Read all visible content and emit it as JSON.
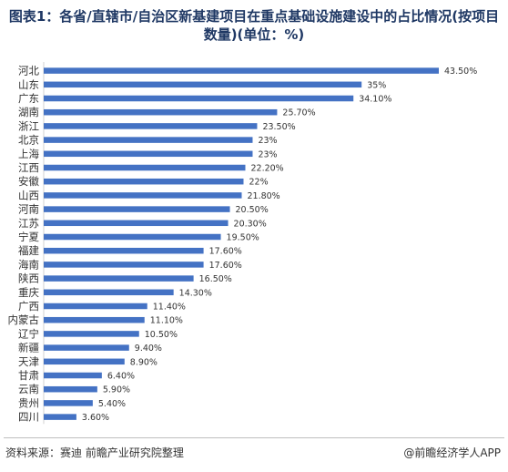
{
  "title": "图表1：各省/直辖市/自治区新基建项目在重点基础设施建设中的占比情况(按项目数量)(单位：%)",
  "footer": {
    "source": "资料来源：赛迪 前瞻产业研究院整理",
    "credit": "@前瞻经济学人APP"
  },
  "colors": {
    "bar": "#4472c4"
  },
  "chart_data": {
    "type": "bar",
    "orientation": "horizontal",
    "title": "图表1：各省/直辖市/自治区新基建项目在重点基础设施建设中的占比情况(按项目数量)(单位：%)",
    "categories": [
      "河北",
      "山东",
      "广东",
      "湖南",
      "浙江",
      "北京",
      "上海",
      "江西",
      "安徽",
      "山西",
      "河南",
      "江苏",
      "宁夏",
      "福建",
      "海南",
      "陕西",
      "重庆",
      "广西",
      "内蒙古",
      "辽宁",
      "新疆",
      "天津",
      "甘肃",
      "云南",
      "贵州",
      "四川"
    ],
    "values": [
      43.5,
      35,
      34.1,
      25.7,
      23.5,
      23,
      23,
      22.2,
      22,
      21.8,
      20.5,
      20.3,
      19.5,
      17.6,
      17.6,
      16.5,
      14.3,
      11.4,
      11.1,
      10.5,
      9.4,
      8.9,
      6.4,
      5.9,
      5.4,
      3.6
    ],
    "value_labels": [
      "43.50%",
      "35%",
      "34.10%",
      "25.70%",
      "23.50%",
      "23%",
      "23%",
      "22.20%",
      "22%",
      "21.80%",
      "20.50%",
      "20.30%",
      "19.50%",
      "17.60%",
      "17.60%",
      "16.50%",
      "14.30%",
      "11.40%",
      "11.10%",
      "10.50%",
      "9.40%",
      "8.90%",
      "6.40%",
      "5.90%",
      "5.40%",
      "3.60%"
    ],
    "xlim": [
      0,
      50
    ],
    "grid": false,
    "legend": "none"
  }
}
